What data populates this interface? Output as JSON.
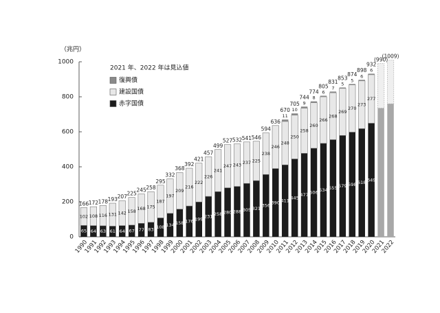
{
  "chart_data": {
    "type": "stacked-bar",
    "y_unit": "（兆円）",
    "subtitle": "2021 年、2022 年は見込値",
    "categories": [
      "1990",
      "1991",
      "1992",
      "1993",
      "1994",
      "1995",
      "1996",
      "1997",
      "1998",
      "1999",
      "2000",
      "2001",
      "2002",
      "2003",
      "2004",
      "2005",
      "2006",
      "2007",
      "2008",
      "2009",
      "2010",
      "2011",
      "2012",
      "2013",
      "2014",
      "2015",
      "2016",
      "2017",
      "2018",
      "2019",
      "2020",
      "2021",
      "2022"
    ],
    "series": [
      {
        "name": "赤字国債",
        "color": "#1c1c1c",
        "values": [
          65,
          64,
          63,
          61,
          64,
          67,
          77,
          83,
          108,
          134,
          158,
          176,
          199,
          231,
          258,
          280,
          288,
          305,
          321,
          356,
          390,
          411,
          445,
          477,
          506,
          534,
          555,
          579,
          598,
          618,
          649,
          735,
          760
        ]
      },
      {
        "name": "建設国債",
        "color": "#e8e8e8",
        "values": [
          102,
          108,
          116,
          131,
          142,
          158,
          168,
          175,
          187,
          197,
          209,
          216,
          222,
          226,
          241,
          247,
          243,
          237,
          225,
          238,
          246,
          248,
          250,
          258,
          260,
          266,
          268,
          269,
          270,
          273,
          277,
          255,
          249
        ]
      },
      {
        "name": "復興債",
        "color": "#8a8a8a",
        "values": [
          null,
          null,
          null,
          null,
          null,
          null,
          null,
          null,
          null,
          null,
          null,
          null,
          null,
          null,
          null,
          null,
          null,
          null,
          null,
          null,
          null,
          11,
          10,
          9,
          8,
          6,
          7,
          5,
          5,
          6,
          6,
          null,
          null
        ]
      }
    ],
    "totals": [
      166,
      172,
      178,
      193,
      207,
      225,
      245,
      258,
      295,
      332,
      368,
      392,
      421,
      457,
      499,
      527,
      532,
      541,
      546,
      594,
      636,
      670,
      705,
      744,
      774,
      805,
      831,
      853,
      874,
      898,
      932,
      {
        "value": 990,
        "label": "(990)"
      },
      {
        "value": 1009,
        "label": "(1009)"
      }
    ],
    "ylim": [
      0,
      1000
    ],
    "yticks": [
      0,
      200,
      400,
      600,
      800,
      1000
    ],
    "grid": false
  }
}
